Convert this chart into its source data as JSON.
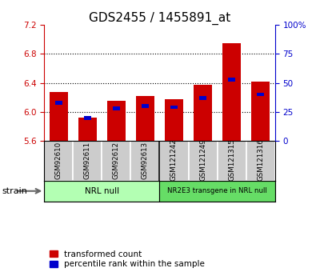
{
  "title": "GDS2455 / 1455891_at",
  "samples": [
    "GSM92610",
    "GSM92611",
    "GSM92612",
    "GSM92613",
    "GSM121242",
    "GSM121249",
    "GSM121315",
    "GSM121316"
  ],
  "transformed_counts": [
    6.28,
    5.92,
    6.15,
    6.22,
    6.18,
    6.37,
    6.95,
    6.42
  ],
  "percentile_ranks": [
    33,
    20,
    28,
    30,
    29,
    37,
    53,
    40
  ],
  "ylim_left": [
    5.6,
    7.2
  ],
  "ylim_right": [
    0,
    100
  ],
  "yticks_left": [
    5.6,
    6.0,
    6.4,
    6.8,
    7.2
  ],
  "yticks_right": [
    0,
    25,
    50,
    75,
    100
  ],
  "ytick_labels_left": [
    "5.6",
    "6.0",
    "6.4",
    "6.8",
    "7.2"
  ],
  "ytick_labels_right": [
    "0",
    "25",
    "50",
    "75",
    "100%"
  ],
  "groups": [
    {
      "label": "NRL null",
      "span": [
        0,
        4
      ],
      "color": "#b3ffb3"
    },
    {
      "label": "NR2E3 transgene in NRL null",
      "span": [
        4,
        8
      ],
      "color": "#66dd66"
    }
  ],
  "bar_color": "#cc0000",
  "blue_color": "#0000cc",
  "base_value": 5.6,
  "bar_width": 0.65,
  "bg_color": "#ffffff",
  "plot_bg": "#ffffff",
  "tick_label_color_left": "#cc0000",
  "tick_label_color_right": "#0000cc",
  "legend_red_label": "transformed count",
  "legend_blue_label": "percentile rank within the sample",
  "strain_label": "strain",
  "blue_square_size": 0.05
}
